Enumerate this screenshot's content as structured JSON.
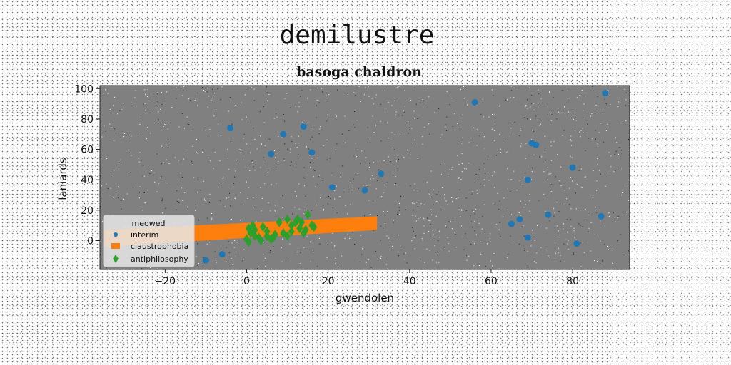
{
  "figure": {
    "suptitle": "demilustre"
  },
  "chart_data": {
    "type": "scatter",
    "title": "basoga chaldron",
    "xlabel": "gwendolen",
    "ylabel": "laniards",
    "xlim": [
      -36,
      94
    ],
    "ylim": [
      -19,
      102
    ],
    "xticks": [
      -20,
      0,
      20,
      40,
      60,
      80
    ],
    "xtick_labels": [
      "−20",
      "0",
      "20",
      "40",
      "60",
      "80"
    ],
    "yticks": [
      0,
      20,
      40,
      60,
      80,
      100
    ],
    "ytick_labels": [
      "0",
      "20",
      "40",
      "60",
      "80",
      "100"
    ],
    "grid": false,
    "legend": {
      "title": "meowed",
      "placement": "lower-left"
    },
    "plot_background": "#808080",
    "series": [
      {
        "name": "interim",
        "kind": "scatter",
        "marker": "circle",
        "color": "#1f77b4",
        "x": [
          88,
          56,
          -4,
          9,
          14,
          6,
          16,
          21,
          29,
          33,
          70,
          71,
          80,
          69,
          74,
          87,
          65,
          67,
          69,
          81,
          -6,
          -10
        ],
        "y": [
          97,
          91,
          74,
          70,
          75,
          57,
          58,
          35,
          33,
          44,
          64,
          63,
          48,
          40,
          17,
          16,
          11,
          14,
          2,
          -2,
          -9,
          -13
        ]
      },
      {
        "name": "claustrophobia",
        "kind": "band",
        "marker": "square",
        "color": "#ff7f0e",
        "x": [
          -35,
          32
        ],
        "lower": [
          -4,
          7
        ],
        "upper": [
          7,
          16
        ]
      },
      {
        "name": "antiphilosophy",
        "kind": "scatter",
        "marker": "diamond",
        "color": "#2ca02c",
        "x": [
          0,
          0.5,
          1,
          2,
          3,
          4,
          5,
          6,
          7,
          9,
          10,
          11,
          12,
          13,
          14,
          15,
          16,
          0.5,
          2,
          3.5,
          5,
          8,
          11,
          12.5,
          14.5,
          16.5,
          10,
          6.5,
          1.5,
          13.5
        ],
        "y": [
          1,
          8,
          5,
          3,
          2,
          9,
          6,
          1,
          4,
          5,
          14,
          10,
          12,
          8,
          5,
          17,
          10,
          -1,
          7,
          0,
          3,
          12,
          6,
          14,
          7,
          9,
          3,
          2,
          10,
          12
        ]
      }
    ]
  }
}
